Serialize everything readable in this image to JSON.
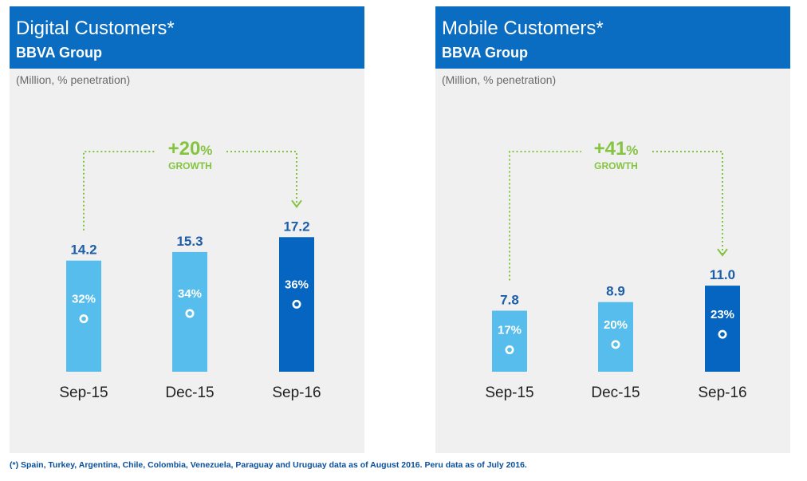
{
  "colors": {
    "header_bg": "#0a6dc2",
    "bar_light": "#56bdec",
    "bar_dark": "#0565c0",
    "value_text": "#1d5ea8",
    "growth_green": "#84c441",
    "panel_bg": "#f0f0f0"
  },
  "chart_data": [
    {
      "type": "bar",
      "title": "Digital Customers*",
      "subtitle": "BBVA Group",
      "unit_label": "(Million, % penetration)",
      "categories": [
        "Sep-15",
        "Dec-15",
        "Sep-16"
      ],
      "values": [
        14.2,
        15.3,
        17.2
      ],
      "value_labels": [
        "14.2",
        "15.3",
        "17.2"
      ],
      "penetration": [
        "32%",
        "34%",
        "36%"
      ],
      "highlight_index": 2,
      "growth": {
        "value": "+20",
        "unit": "%",
        "label": "GROWTH",
        "from": "Sep-15",
        "to": "Sep-16"
      }
    },
    {
      "type": "bar",
      "title": "Mobile Customers*",
      "subtitle": "BBVA Group",
      "unit_label": "(Million, % penetration)",
      "categories": [
        "Sep-15",
        "Dec-15",
        "Sep-16"
      ],
      "values": [
        7.8,
        8.9,
        11.0
      ],
      "value_labels": [
        "7.8",
        "8.9",
        "11.0"
      ],
      "penetration": [
        "17%",
        "20%",
        "23%"
      ],
      "highlight_index": 2,
      "growth": {
        "value": "+41",
        "unit": "%",
        "label": "GROWTH",
        "from": "Sep-15",
        "to": "Sep-16"
      }
    }
  ],
  "footnote": "(*) Spain, Turkey, Argentina, Chile, Colombia, Venezuela, Paraguay and Uruguay data as of August 2016. Peru data as of July 2016."
}
